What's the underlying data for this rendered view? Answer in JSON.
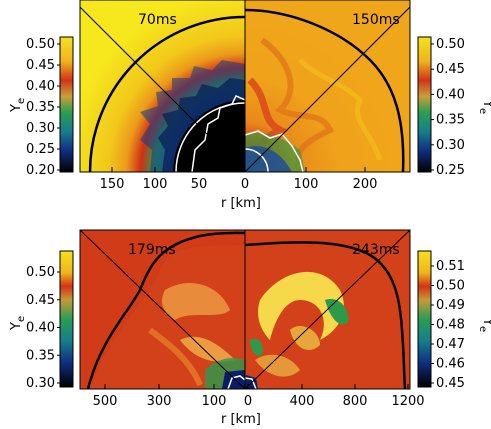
{
  "top": {
    "left_panel": {
      "time": "70ms",
      "colorbar": {
        "ticks": [
          "0.50",
          "0.45",
          "0.40",
          "0.35",
          "0.30",
          "0.25",
          "0.20"
        ],
        "label": "Y",
        "label_sub": "e"
      }
    },
    "right_panel": {
      "time": "150ms",
      "colorbar": {
        "ticks": [
          "0.50",
          "0.45",
          "0.40",
          "0.35",
          "0.30",
          "0.25"
        ],
        "label": "Y",
        "label_sub": "e"
      }
    },
    "x_axis": {
      "left_ticks": [
        "150",
        "100",
        "50",
        "0"
      ],
      "right_ticks": [
        "100",
        "200"
      ],
      "label": "r [km]"
    }
  },
  "bottom": {
    "left_panel": {
      "time": "179ms",
      "colorbar": {
        "ticks": [
          "0.50",
          "0.45",
          "0.40",
          "0.35",
          "0.30"
        ],
        "label": "Y",
        "label_sub": "e"
      }
    },
    "right_panel": {
      "time": "243ms",
      "colorbar": {
        "ticks": [
          "0.51",
          "0.50",
          "0.49",
          "0.48",
          "0.47",
          "0.46",
          "0.45"
        ],
        "label": "Y",
        "label_sub": "e"
      }
    },
    "x_axis": {
      "left_ticks": [
        "500",
        "300",
        "100",
        "0"
      ],
      "right_ticks": [
        "400",
        "800",
        "1200"
      ],
      "label": "r [km]"
    }
  },
  "colors": {
    "cb_yellow": "#f2dd1d",
    "cb_orange": "#e7951c",
    "cb_red": "#cf2d16",
    "cb_green": "#2f9a4c",
    "cb_teal": "#1b7f86",
    "cb_blue": "#123a8a",
    "cb_black": "#000000"
  }
}
